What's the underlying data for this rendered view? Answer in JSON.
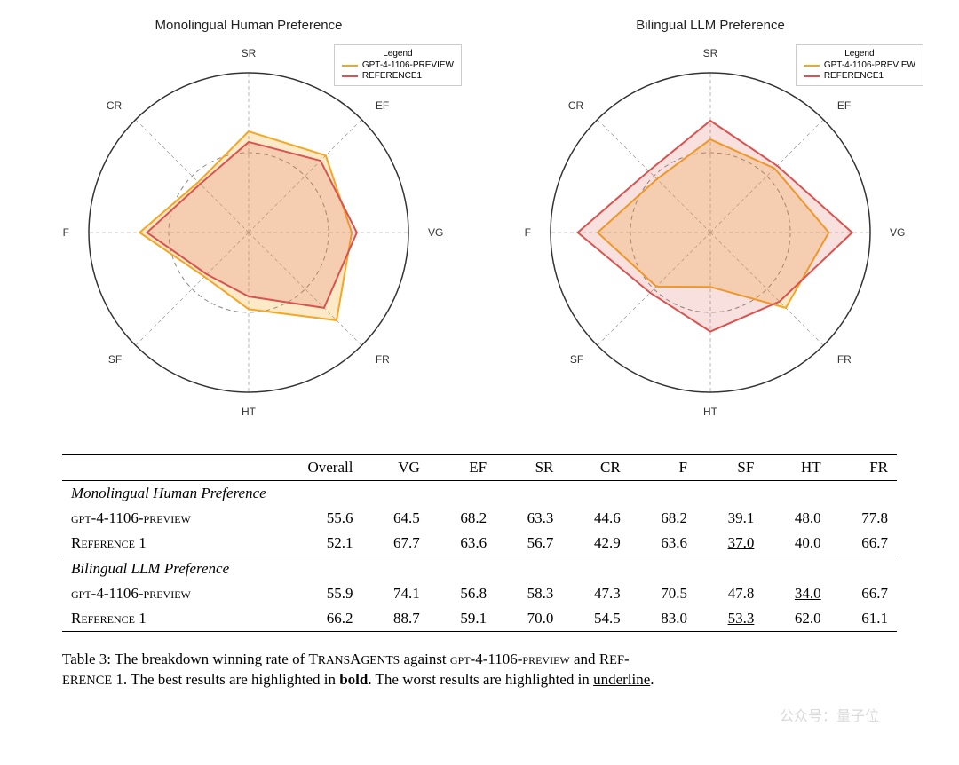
{
  "charts": [
    {
      "title": "Monolingual Human Preference",
      "axes": [
        "SR",
        "EF",
        "VG",
        "FR",
        "HT",
        "SF",
        "F",
        "CR"
      ],
      "axis_fontsize": 12,
      "legend": {
        "title": "Legend",
        "items": [
          {
            "label": "GPT-4-1106-PREVIEW",
            "color": "#f5a623"
          },
          {
            "label": "REFERENCE1",
            "color": "#d9534f"
          }
        ]
      },
      "reference_radius": 50,
      "max_radius": 100,
      "series": [
        {
          "color": "#f5a623",
          "fill": "rgba(245,166,35,0.25)",
          "values": [
            63.3,
            68.2,
            64.5,
            77.8,
            48.0,
            39.1,
            68.2,
            44.6
          ]
        },
        {
          "color": "#d9534f",
          "fill": "rgba(217,83,79,0.18)",
          "values": [
            56.7,
            63.6,
            67.7,
            66.7,
            40.0,
            37.0,
            63.6,
            42.9
          ]
        }
      ],
      "outer_circle_color": "#333333",
      "grid_color": "#888888",
      "background": "#ffffff"
    },
    {
      "title": "Bilingual LLM Preference",
      "axes": [
        "SR",
        "EF",
        "VG",
        "FR",
        "HT",
        "SF",
        "F",
        "CR"
      ],
      "axis_fontsize": 12,
      "legend": {
        "title": "Legend",
        "items": [
          {
            "label": "GPT-4-1106-PREVIEW",
            "color": "#f5a623"
          },
          {
            "label": "REFERENCE1",
            "color": "#d9534f"
          }
        ]
      },
      "reference_radius": 50,
      "max_radius": 100,
      "series": [
        {
          "color": "#f5a623",
          "fill": "rgba(245,166,35,0.25)",
          "values": [
            58.3,
            56.8,
            74.1,
            66.7,
            34.0,
            47.8,
            70.5,
            47.3
          ]
        },
        {
          "color": "#d9534f",
          "fill": "rgba(217,83,79,0.18)",
          "values": [
            70.0,
            59.1,
            88.7,
            61.1,
            62.0,
            53.3,
            83.0,
            54.5
          ]
        }
      ],
      "outer_circle_color": "#333333",
      "grid_color": "#888888",
      "background": "#ffffff"
    }
  ],
  "table": {
    "columns": [
      "",
      "Overall",
      "VG",
      "EF",
      "SR",
      "CR",
      "F",
      "SF",
      "HT",
      "FR"
    ],
    "sections": [
      {
        "header": "Monolingual Human Preference",
        "rows": [
          {
            "label_html": "<span class='smallcaps'>gpt-4-1106-preview</span>",
            "cells": [
              {
                "v": "55.6"
              },
              {
                "v": "64.5"
              },
              {
                "v": "68.2"
              },
              {
                "v": "63.3"
              },
              {
                "v": "44.6"
              },
              {
                "v": "68.2"
              },
              {
                "v": "39.1",
                "u": true
              },
              {
                "v": "48.0"
              },
              {
                "v": "77.8",
                "b": true
              }
            ]
          },
          {
            "label_html": "R<span class='smallcaps'>eference</span> 1",
            "cells": [
              {
                "v": "52.1"
              },
              {
                "v": "67.7",
                "b": true
              },
              {
                "v": "63.6"
              },
              {
                "v": "56.7"
              },
              {
                "v": "42.9"
              },
              {
                "v": "63.6"
              },
              {
                "v": "37.0",
                "u": true
              },
              {
                "v": "40.0"
              },
              {
                "v": "66.7"
              }
            ]
          }
        ]
      },
      {
        "header": "Bilingual LLM Preference",
        "rows": [
          {
            "label_html": "<span class='smallcaps'>gpt-4-1106-preview</span>",
            "cells": [
              {
                "v": "55.9"
              },
              {
                "v": "74.1",
                "b": true
              },
              {
                "v": "56.8"
              },
              {
                "v": "58.3"
              },
              {
                "v": "47.3"
              },
              {
                "v": "70.5"
              },
              {
                "v": "47.8"
              },
              {
                "v": "34.0",
                "u": true
              },
              {
                "v": "66.7"
              }
            ]
          },
          {
            "label_html": "R<span class='smallcaps'>eference</span> 1",
            "cells": [
              {
                "v": "66.2"
              },
              {
                "v": "88.7",
                "b": true
              },
              {
                "v": "59.1"
              },
              {
                "v": "70.0"
              },
              {
                "v": "54.5"
              },
              {
                "v": "83.0"
              },
              {
                "v": "53.3",
                "u": true
              },
              {
                "v": "62.0"
              },
              {
                "v": "61.1"
              }
            ]
          }
        ]
      }
    ]
  },
  "caption": {
    "prefix": "Table 3: The breakdown winning rate of ",
    "transagents": "TransAgents",
    "mid1": " against ",
    "gpt": "gpt-4-1106-preview",
    "mid2": " and ",
    "ref": "Reference",
    "refnum": " 1. The best results are highlighted in ",
    "bold_word": "bold",
    "mid3": ". The worst results are highlighted in ",
    "underline_word": "underline",
    "end": "."
  },
  "watermark": "公众号：量子位"
}
